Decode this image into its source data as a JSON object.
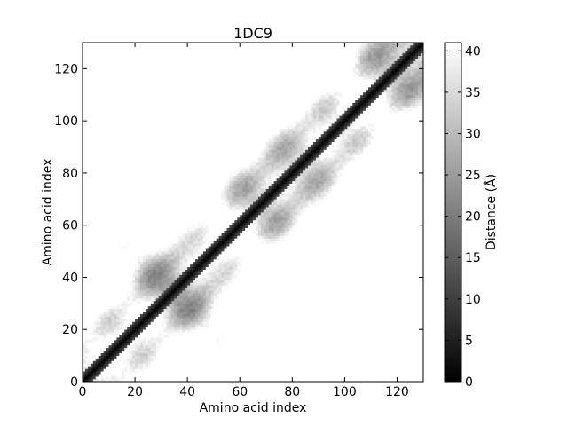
{
  "chart_data": {
    "type": "heatmap",
    "title": "1DC9",
    "xlabel": "Amino acid index",
    "ylabel": "Amino acid index",
    "xlim": [
      0,
      130
    ],
    "ylim": [
      0,
      130
    ],
    "x_ticks": [
      0,
      20,
      40,
      60,
      80,
      100,
      120
    ],
    "y_ticks": [
      0,
      20,
      40,
      60,
      80,
      100,
      120
    ],
    "colorbar": {
      "label": "Distance (Å)",
      "range": [
        0,
        41
      ],
      "ticks": [
        0,
        5,
        10,
        15,
        20,
        25,
        30,
        35,
        40
      ],
      "colormap": "gray"
    },
    "grid": false,
    "symmetric": true,
    "diagonal_value": 0,
    "description_of_pattern": []
  }
}
